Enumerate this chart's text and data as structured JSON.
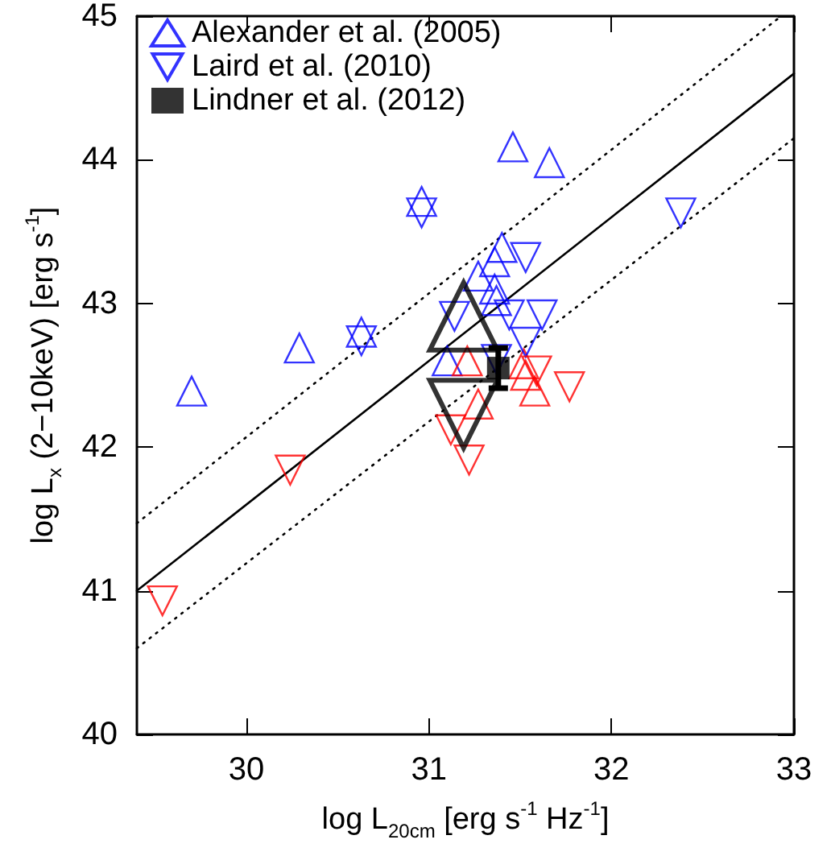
{
  "chart_data": {
    "type": "scatter",
    "xlabel": "log L$_{20cm}$ [erg s$^{-1}$ Hz$^{-1}$]",
    "ylabel": "log L$_{x}$ (2−10keV) [erg s$^{-1}$]",
    "xlim": [
      29.4,
      33
    ],
    "xticks": [
      30,
      31,
      32,
      33
    ],
    "ylim": [
      40,
      45
    ],
    "yticks": [
      40,
      41,
      42,
      43,
      44,
      45
    ],
    "legend": "top left",
    "series": [
      {
        "name": "Alexander et al. (2005)",
        "marker": "triangle",
        "color": "#0000ff",
        "x": [
          29.7,
          30.29,
          30.63,
          30.96,
          31.46,
          31.66,
          31.1,
          31.27,
          31.36,
          31.4,
          31.36,
          31.37
        ],
        "values": [
          42.39,
          42.69,
          42.8,
          43.71,
          44.09,
          43.98,
          42.6,
          43.19,
          43.29,
          43.39,
          43.1,
          43.02
        ]
      },
      {
        "marker": "triangle",
        "color": "#ff0000",
        "x": [
          31.21,
          31.27,
          31.52,
          31.53,
          31.58
        ],
        "values": [
          42.6,
          42.3,
          42.58,
          42.5,
          42.39
        ]
      },
      {
        "name": "Laird et al. (2010)",
        "marker": "triangle-down",
        "color": "#0000ff",
        "x": [
          30.96,
          30.63,
          31.14,
          31.53,
          31.44,
          31.62,
          31.53,
          31.37,
          32.38
        ],
        "values": [
          43.63,
          42.74,
          42.91,
          43.32,
          42.92,
          42.92,
          42.73,
          42.61,
          43.63
        ]
      },
      {
        "marker": "triangle-down",
        "color": "#ff0000",
        "x": [
          29.54,
          30.24,
          31.12,
          31.22,
          31.59,
          31.77
        ],
        "values": [
          40.93,
          41.84,
          42.12,
          41.91,
          42.53,
          42.42
        ]
      },
      {
        "name": "Lindner et al. (2012)",
        "marker": "square",
        "color": "#000000",
        "x": [
          31.38
        ],
        "values": [
          42.55
        ],
        "errors": [
          0.14
        ]
      },
      {
        "marker": "triangle",
        "color": "#000000",
        "x": [
          31.19
        ],
        "values": [
          42.91
        ]
      },
      {
        "marker": "triangle-down",
        "color": "#000000",
        "x": [
          31.19
        ],
        "values": [
          42.23
        ]
      },
      {
        "type": "line",
        "marker": "none",
        "line_style": "solid",
        "color": "#000000",
        "x": [
          29.4,
          33
        ],
        "values": [
          41.0,
          44.6
        ]
      },
      {
        "type": "line",
        "marker": "none",
        "line_style": "dotted",
        "color": "#000000",
        "x": [
          29.4,
          32.93
        ],
        "values": [
          41.47,
          45.0
        ]
      },
      {
        "type": "line",
        "marker": "none",
        "line_style": "dotted",
        "color": "#000000",
        "x": [
          29.4,
          33
        ],
        "values": [
          40.6,
          44.15
        ]
      }
    ]
  }
}
